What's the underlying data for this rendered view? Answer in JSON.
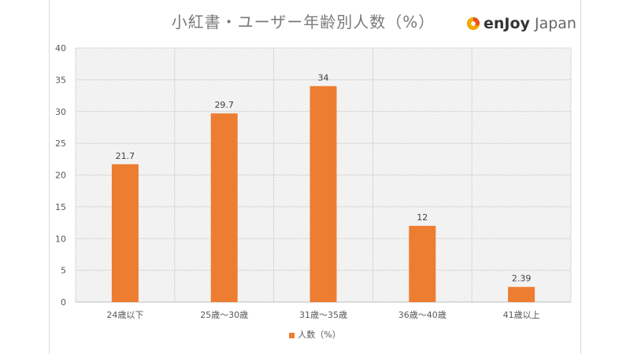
{
  "header": {
    "title": "小紅書・ユーザー年齢別人数（%）",
    "logo": {
      "text_bold": "enJoy",
      "text_light": "Japan"
    }
  },
  "colors": {
    "bar": "#ed7d31",
    "grid": "#d9d9d9",
    "plot_bg": "#f2f2f2"
  },
  "chart_data": {
    "type": "bar",
    "title": "小紅書・ユーザー年齢別人数（%）",
    "categories": [
      "24歳以下",
      "25歳〜30歳",
      "31歳〜35歳",
      "36歳〜40歳",
      "41歳以上"
    ],
    "series": [
      {
        "name": "人数（%）",
        "values": [
          21.7,
          29.7,
          34,
          12,
          2.39
        ]
      }
    ],
    "value_labels": [
      "21.7",
      "29.7",
      "34",
      "12",
      "2.39"
    ],
    "ylim": [
      0,
      40
    ],
    "yticks": [
      0,
      5,
      10,
      15,
      20,
      25,
      30,
      35,
      40
    ],
    "grid": true,
    "legend": "bottom"
  }
}
